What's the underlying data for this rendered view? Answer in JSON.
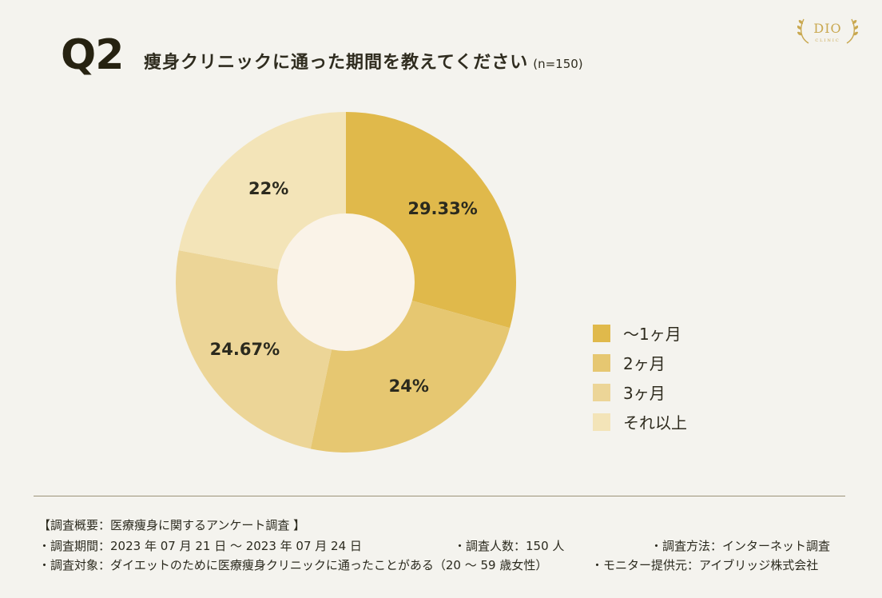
{
  "header": {
    "question_number": "Q2",
    "question_text": "痩身クリニックに通った期間を教えてください",
    "sample_size": "(n=150)"
  },
  "logo": {
    "mark": "DIO",
    "sub": "CLINIC"
  },
  "colors": {
    "background": "#f4f3ee",
    "center": "#faf3e8",
    "slice_1": "#e0b94b",
    "slice_2": "#e6c771",
    "slice_3": "#ecd597",
    "slice_4": "#f3e4b8"
  },
  "chart_data": {
    "type": "pie",
    "style": "donut",
    "title": "痩身クリニックに通った期間を教えてください",
    "categories": [
      "〜1ヶ月",
      "2ヶ月",
      "3ヶ月",
      "それ以上"
    ],
    "values": [
      29.33,
      24,
      24.67,
      22
    ],
    "value_labels": [
      "29.33%",
      "24%",
      "24.67%",
      "22%"
    ],
    "legend_position": "right"
  },
  "footer": {
    "title": "【調査概要：医療痩身に関するアンケート調査 】",
    "period": "・調査期間：2023 年 07 月 21 日 ～ 2023 年 07 月 24 日",
    "respondents": "・調査人数：150 人",
    "method": "・調査方法：インターネット調査",
    "target": "・調査対象：ダイエットのために医療痩身クリニックに通ったことがある（20 ～ 59 歳女性）",
    "provider": "・モニター提供元：アイブリッジ株式会社"
  }
}
